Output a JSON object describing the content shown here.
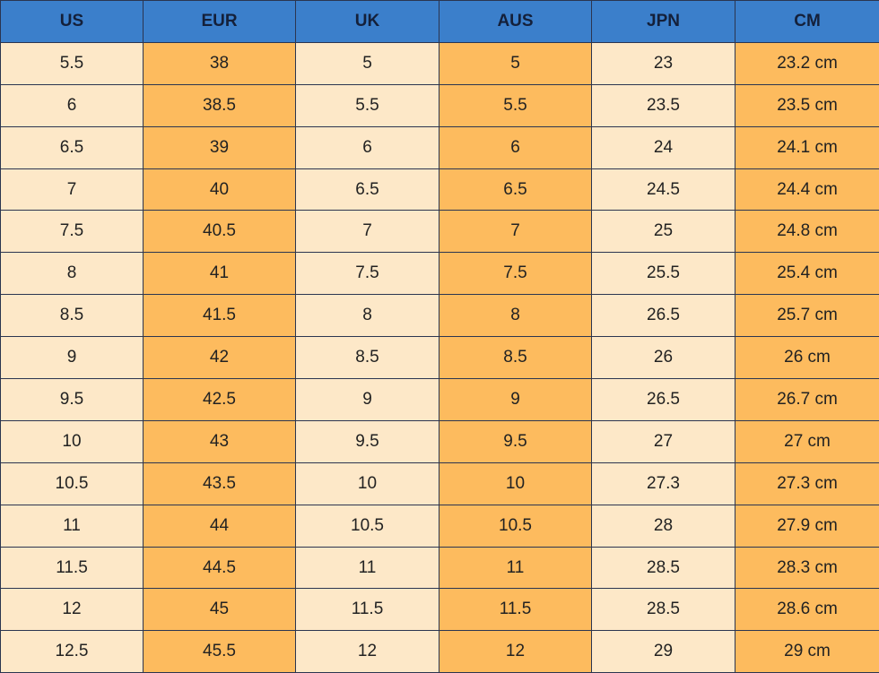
{
  "table": {
    "header": [
      "US",
      "EUR",
      "UK",
      "AUS",
      "JPN",
      "CM"
    ],
    "rows": [
      [
        "5.5",
        "38",
        "5",
        "5",
        "23",
        "23.2 cm"
      ],
      [
        "6",
        "38.5",
        "5.5",
        "5.5",
        "23.5",
        "23.5 cm"
      ],
      [
        "6.5",
        "39",
        "6",
        "6",
        "24",
        "24.1 cm"
      ],
      [
        "7",
        "40",
        "6.5",
        "6.5",
        "24.5",
        "24.4 cm"
      ],
      [
        "7.5",
        "40.5",
        "7",
        "7",
        "25",
        "24.8 cm"
      ],
      [
        "8",
        "41",
        "7.5",
        "7.5",
        "25.5",
        "25.4 cm"
      ],
      [
        "8.5",
        "41.5",
        "8",
        "8",
        "26.5",
        "25.7 cm"
      ],
      [
        "9",
        "42",
        "8.5",
        "8.5",
        "26",
        "26 cm"
      ],
      [
        "9.5",
        "42.5",
        "9",
        "9",
        "26.5",
        "26.7 cm"
      ],
      [
        "10",
        "43",
        "9.5",
        "9.5",
        "27",
        "27 cm"
      ],
      [
        "10.5",
        "43.5",
        "10",
        "10",
        "27.3",
        "27.3 cm"
      ],
      [
        "11",
        "44",
        "10.5",
        "10.5",
        "28",
        "27.9 cm"
      ],
      [
        "11.5",
        "44.5",
        "11",
        "11",
        "28.5",
        "28.3 cm"
      ],
      [
        "12",
        "45",
        "11.5",
        "11.5",
        "28.5",
        "28.6 cm"
      ],
      [
        "12.5",
        "45.5",
        "12",
        "12",
        "29",
        "29 cm"
      ]
    ]
  }
}
